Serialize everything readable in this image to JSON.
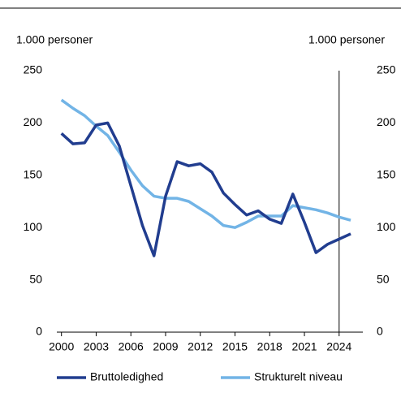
{
  "chart_data": {
    "type": "line",
    "ylabel": "1.000 personer",
    "y2label": "1.000 personer",
    "x": [
      2000,
      2001,
      2002,
      2003,
      2004,
      2005,
      2006,
      2007,
      2008,
      2009,
      2010,
      2011,
      2012,
      2013,
      2014,
      2015,
      2016,
      2017,
      2018,
      2019,
      2020,
      2021,
      2022,
      2023,
      2024,
      2025
    ],
    "series": [
      {
        "name": "Bruttoledighed",
        "color": "#213d8f",
        "values": [
          190,
          180,
          181,
          198,
          200,
          178,
          140,
          102,
          73,
          130,
          163,
          159,
          161,
          153,
          133,
          122,
          112,
          116,
          108,
          104,
          132,
          105,
          76,
          84,
          89,
          94
        ]
      },
      {
        "name": "Strukturelt niveau",
        "color": "#72b4e6",
        "values": [
          222,
          214,
          207,
          197,
          188,
          172,
          155,
          140,
          130,
          128,
          128,
          125,
          118,
          111,
          102,
          100,
          105,
          111,
          111,
          111,
          121,
          119,
          117,
          114,
          110,
          107
        ]
      }
    ],
    "xlim": [
      1999.6,
      2026.05
    ],
    "xticks": [
      2000,
      2003,
      2006,
      2009,
      2012,
      2015,
      2018,
      2021,
      2024
    ],
    "ylim": [
      0,
      250
    ],
    "yticks": [
      0,
      50,
      100,
      150,
      200,
      250
    ],
    "y2lim": [
      0,
      250
    ],
    "y2ticks": [
      0,
      50,
      100,
      150,
      200,
      250
    ],
    "vline_x": 2024,
    "legend": "bottom"
  }
}
